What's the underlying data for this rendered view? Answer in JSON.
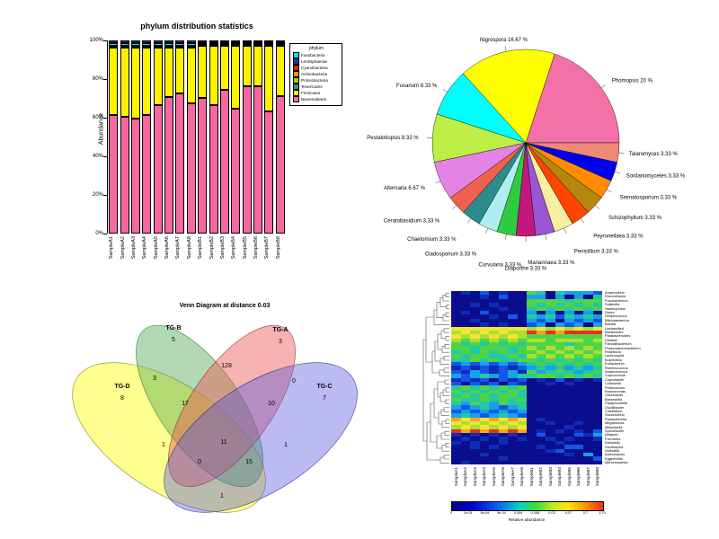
{
  "page": {
    "background": "#FFFFFF"
  },
  "chart_data": [
    {
      "type": "bar",
      "title": "phylum distribution statistics",
      "ylabel": "Abundance",
      "yticks": [
        "0%",
        "20%",
        "40%",
        "60%",
        "80%",
        "100%"
      ],
      "ylim": [
        0,
        100
      ],
      "categories": [
        "SampleA1",
        "SampleA2",
        "SampleA3",
        "SampleA4",
        "SampleA5",
        "SampleA6",
        "SampleA7",
        "SampleA8",
        "SampleB1",
        "SampleB2",
        "SampleB3",
        "SampleB4",
        "SampleB5",
        "SampleB6",
        "SampleB7",
        "SampleB8"
      ],
      "series": [
        {
          "name": "Bacteroidetes",
          "color": "#F768A1",
          "values": [
            62,
            61,
            60,
            62,
            67,
            71,
            73,
            68,
            71,
            67,
            75,
            65,
            77,
            77,
            64,
            72
          ]
        },
        {
          "name": "Firmicutes",
          "color": "#FFF200",
          "values": [
            35,
            36,
            37,
            35,
            30,
            26,
            24,
            29,
            27,
            31,
            23,
            33,
            21,
            21,
            34,
            26
          ]
        },
        {
          "name": "Proteobacteria",
          "color": "#9ACD32",
          "values": [
            0.3,
            0.3,
            0.3,
            0.3,
            0.3,
            0.3,
            0.3,
            0.3,
            1,
            1,
            1,
            1,
            1,
            1,
            1,
            1
          ]
        },
        {
          "name": "Fusobacteria",
          "color": "#00E5EE",
          "values": [
            1.5,
            1.5,
            1.5,
            1.5,
            1.5,
            1.5,
            1.5,
            1.5,
            0.2,
            0.2,
            0.2,
            0.2,
            0.2,
            0.2,
            0.2,
            0.2
          ]
        },
        {
          "name": "Lentisphaerae",
          "color": "#223399",
          "values": [
            1.2,
            1.2,
            1.2,
            1.2,
            1.2,
            1.2,
            1.2,
            1.2,
            0.8,
            0.8,
            0.8,
            0.8,
            0.8,
            0.8,
            0.8,
            0.8
          ]
        }
      ],
      "legend_title": "phylum",
      "legend": [
        {
          "name": "Fusobacteria",
          "color": "#00E5EE"
        },
        {
          "name": "Lentisphaerae",
          "color": "#223399"
        },
        {
          "name": "Cyanobacteria",
          "color": "#CC2222"
        },
        {
          "name": "Actinobacteria",
          "color": "#FF9900"
        },
        {
          "name": "Proteobacteria",
          "color": "#9ACD32"
        },
        {
          "name": "Tenericutes",
          "color": "#2E8B8B"
        },
        {
          "name": "Firmicutes",
          "color": "#FFF200"
        },
        {
          "name": "Bacteroidetes",
          "color": "#F768A1"
        }
      ]
    },
    {
      "type": "pie",
      "slices": [
        {
          "name": "Phomopsis",
          "value": 20,
          "label": "Phomopsis 20 %",
          "color": "#F470A9"
        },
        {
          "name": "Nigrospora",
          "value": 16.67,
          "label": "Nigrospora 16.67 %",
          "color": "#FFFF00"
        },
        {
          "name": "Fusarium",
          "value": 8.33,
          "label": "Fusarium 8.33 %",
          "color": "#00FFFF"
        },
        {
          "name": "Pestalotiopsis",
          "value": 8.33,
          "label": "Pestalotiopsis 8.33 %",
          "color": "#BCEE45"
        },
        {
          "name": "Alternaria",
          "value": 6.67,
          "label": "Alternaria 6.67 %",
          "color": "#E583E5"
        },
        {
          "name": "Ceratobasidium",
          "value": 3.33,
          "label": "Ceratobasidium 3.33 %",
          "color": "#F0604D"
        },
        {
          "name": "Chaetomium",
          "value": 3.33,
          "label": "Chaetomium 3.33 %",
          "color": "#2E8B8B"
        },
        {
          "name": "Cladosporium",
          "value": 3.33,
          "label": "Cladosporium 3.33 %",
          "color": "#AFEEEE"
        },
        {
          "name": "Curvularia",
          "value": 3.33,
          "label": "Curvularia 3.33 %",
          "color": "#2ECC40"
        },
        {
          "name": "Diaporthe",
          "value": 3.33,
          "label": "Diaporthe 3.33 %",
          "color": "#C2187C"
        },
        {
          "name": "Mariannaea",
          "value": 3.33,
          "label": "Mariannaea 3.33 %",
          "color": "#9955D4"
        },
        {
          "name": "Penicillium",
          "value": 3.33,
          "label": "Penicillium 3.33 %",
          "color": "#F7EFA0"
        },
        {
          "name": "Peyronellaea",
          "value": 3.33,
          "label": "Peyronellaea 3.33 %",
          "color": "#FF4500"
        },
        {
          "name": "Schizophyllum",
          "value": 3.33,
          "label": "Schizophyllum 3.33 %",
          "color": "#B8860B"
        },
        {
          "name": "Seimatosporium",
          "value": 3.33,
          "label": "Seimatosporium 3.33 %",
          "color": "#FF8C00"
        },
        {
          "name": "Sordariomycetes",
          "value": 3.33,
          "label": "Sordariomycetes 3.33 %",
          "color": "#0000EE"
        },
        {
          "name": "Talaromyces",
          "value": 3.33,
          "label": "Talaromyces 3.33 %",
          "color": "#EE8877"
        }
      ]
    },
    {
      "type": "venn",
      "title": "Venn Diagram at distance 0.03",
      "sets": [
        {
          "id": "TG-D",
          "count": 8,
          "color": "#FFFF33"
        },
        {
          "id": "TG-B",
          "count": 5,
          "color": "#55AA55"
        },
        {
          "id": "TG-A",
          "count": 3,
          "color": "#EE5555"
        },
        {
          "id": "TG-C",
          "count": 7,
          "color": "#5555DD"
        }
      ],
      "overlaps": {
        "DB": 3,
        "BA": 128,
        "AC": 0,
        "DA": 1,
        "BC": 1,
        "DC": 1,
        "DBA": 17,
        "BAC": 10,
        "DAC": 0,
        "DBC": 15,
        "DBAC": 11
      }
    },
    {
      "type": "heatmap",
      "rows": [
        "Anaerovibrio",
        "Flavonifractor",
        "Fusobacterium",
        "Sutterella",
        "Haemophilus",
        "Dorea",
        "Streptococcus",
        "Bifidobacterium",
        "Blautia",
        "Unclassified",
        "Bacteroides",
        "Parabacteroides",
        "Dialister",
        "Faecalibacterium",
        "Phascolarctobacterium",
        "Roseburia",
        "Lachnospira",
        "Butyrivibrio",
        "Eubacterium",
        "Ruminococcus",
        "Anaerotruncus",
        "Coprococcus",
        "Coprobacter",
        "Collinsella",
        "Pediococcus",
        "Roseomonas",
        "Odoribacter",
        "Barnesiella",
        "Paraprevotella",
        "Oscillibacter",
        "Clostridium",
        "Succinivibrio",
        "Parasutterella",
        "Megamonas",
        "Mitsuokella",
        "Sporobacter",
        "Alistipes",
        "Prevotella",
        "Klebsiella",
        "Oscillospira",
        "Victivallis",
        "Actinomyces",
        "Eggerthella",
        "Marvinbryantia"
      ],
      "cols": [
        "SampleA1",
        "SampleA2",
        "SampleA3",
        "SampleA4",
        "SampleA5",
        "SampleA6",
        "SampleA7",
        "SampleA8",
        "SampleB1",
        "SampleB2",
        "SampleB3",
        "SampleB4",
        "SampleB5",
        "SampleB6",
        "SampleB7",
        "SampleB8"
      ],
      "palette": [
        "#0A0E8C",
        "#0D2DB5",
        "#1556E8",
        "#19A0E8",
        "#23C9A0",
        "#4FD447",
        "#A9DF35",
        "#F2E531",
        "#F5A623",
        "#E9301F"
      ],
      "matrix": [
        "0102010054043332",
        "0001020033030304",
        "0000000055554555",
        "0010100054545454",
        "0000010045454545",
        "0102000030303030",
        "0000102043424343",
        "0010000032303232",
        "0001010023032303",
        "7777777767676767",
        "6767676698989999",
        "7676767655555555",
        "6565656566566656",
        "5454545455554555",
        "5545554565656565",
        "4545454556565656",
        "5455445465656565",
        "4454544554545454",
        "2323232345454545",
        "1212121234343434",
        "2132123153454345",
        "3234323445545454",
        "1212021201020101",
        "2021202100101000",
        "4545454500000000",
        "5454545400000000",
        "4545455400000000",
        "5445454500000000",
        "4354354400000000",
        "3234323400000000",
        "2323232300000000",
        "3432343200000000",
        "8787878701000000",
        "7676767600100100",
        "6767676700001000",
        "9898989801010102",
        "1010101002000213",
        "0101010100101001",
        "1010010000010000",
        "0010100001002200",
        "0000000000120000",
        "0001000000001030",
        "0000010000000002",
        "0100000000000000"
      ],
      "colorbar_ticks": [
        "0",
        "1e-04",
        "5e-04",
        "9e-04",
        "0.004",
        "0.008",
        "0.03",
        "0.07",
        "0.7",
        "3.70"
      ],
      "colorbar_label": "Relative abundance"
    }
  ]
}
